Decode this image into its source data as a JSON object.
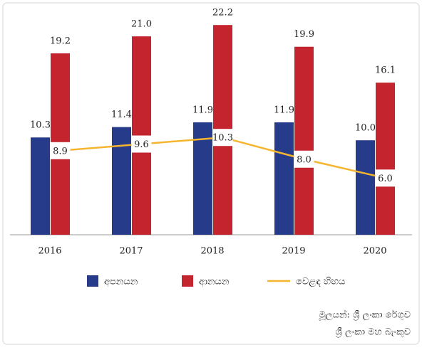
{
  "chart_data": {
    "type": "bar",
    "categories": [
      "2016",
      "2017",
      "2018",
      "2019",
      "2020"
    ],
    "series": [
      {
        "name": "අපනයන",
        "color": "#263c8a",
        "values": [
          10.3,
          11.4,
          11.9,
          11.9,
          10.0
        ],
        "value_labels": [
          "10.3",
          "11.4",
          "11.9",
          "11.9",
          "10.0"
        ]
      },
      {
        "name": "ආනයන",
        "color": "#c3242e",
        "values": [
          19.2,
          21.0,
          22.2,
          19.9,
          16.1
        ],
        "value_labels": [
          "19.2",
          "21.0",
          "22.2",
          "19.9",
          "16.1"
        ]
      },
      {
        "name": "වෙළඳ හිඟය",
        "type": "line",
        "color": "#f6b52e",
        "values": [
          8.9,
          9.6,
          10.3,
          8.0,
          6.0
        ],
        "value_labels": [
          "8.9",
          "9.6",
          "10.3",
          "8.0",
          "6.0"
        ]
      }
    ],
    "source": [
      "මූලයන්: ශ්‍රී ලංකා රේගුව",
      "ශ්‍රී ලංකා මහ බැංකුව"
    ]
  }
}
